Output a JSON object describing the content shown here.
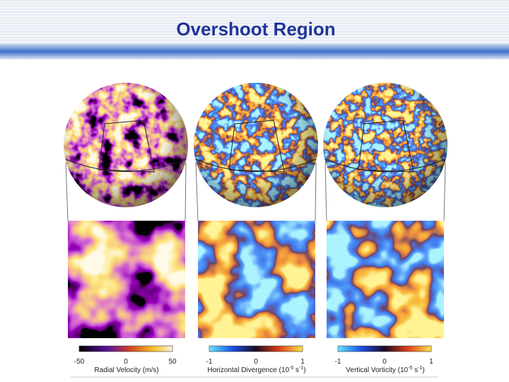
{
  "header": {
    "title": "Overshoot Region"
  },
  "panels": [
    {
      "ticks": [
        "-50",
        "0",
        "50"
      ],
      "label_parts": [
        "Radial Velocity (m/s)"
      ]
    },
    {
      "ticks": [
        "-1",
        "0",
        "1"
      ],
      "label_parts": [
        "Horizontal Divergence (10",
        "-5",
        " s",
        "-1",
        ")"
      ]
    },
    {
      "ticks": [
        "-1",
        "0",
        "1"
      ],
      "label_parts": [
        "Vertical Vorticity (10",
        "-5",
        " s",
        "-1",
        ")"
      ]
    }
  ]
}
